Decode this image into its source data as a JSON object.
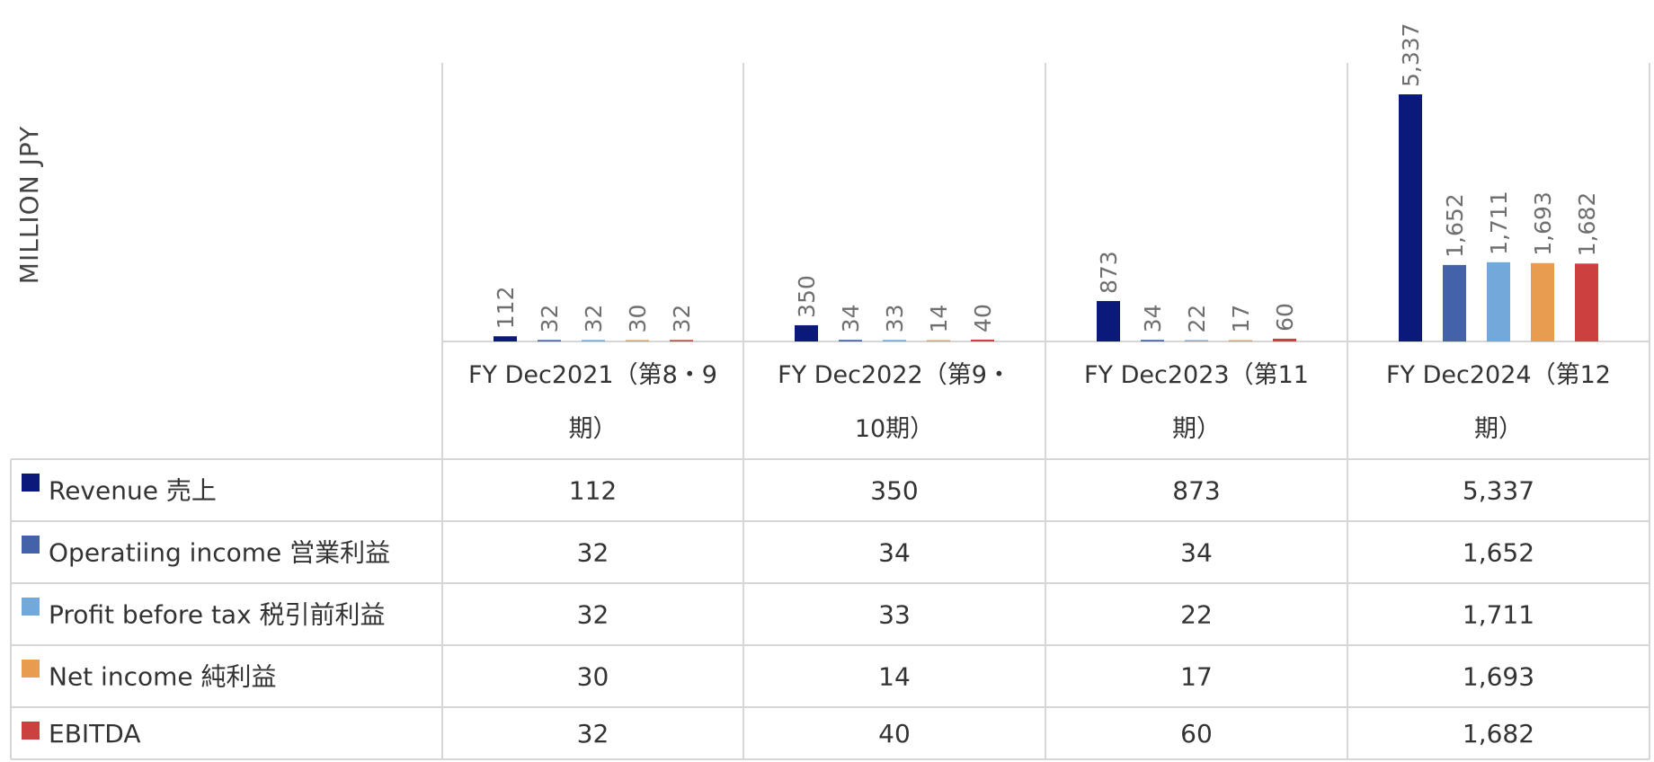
{
  "chart_data": {
    "type": "bar",
    "ylabel": "MILLION JPY",
    "categories": [
      [
        "FY Dec2021（第8・9",
        "期）"
      ],
      [
        "FY Dec2022（第9・",
        "10期）"
      ],
      [
        "FY Dec2023（第11",
        "期）"
      ],
      [
        "FY Dec2024（第12",
        "期）"
      ]
    ],
    "ylim": [
      0,
      5337
    ],
    "grid": false,
    "legend": "data-table",
    "series": [
      {
        "name": "Revenue 売上",
        "color": "#0b1a7a",
        "values": [
          112,
          350,
          873,
          5337
        ],
        "labels": [
          "112",
          "350",
          "873",
          "5,337"
        ]
      },
      {
        "name": "Operatiing income 営業利益",
        "color": "#4462a8",
        "values": [
          32,
          34,
          34,
          1652
        ],
        "labels": [
          "32",
          "34",
          "34",
          "1,652"
        ]
      },
      {
        "name": "Profit before tax 税引前利益",
        "color": "#72a9db",
        "values": [
          32,
          33,
          22,
          1711
        ],
        "labels": [
          "32",
          "33",
          "22",
          "1,711"
        ]
      },
      {
        "name": "Net income 純利益",
        "color": "#e89c4f",
        "values": [
          30,
          14,
          17,
          1693
        ],
        "labels": [
          "30",
          "14",
          "17",
          "1,693"
        ]
      },
      {
        "name": "EBITDA",
        "color": "#cc4040",
        "values": [
          32,
          40,
          60,
          1682
        ],
        "labels": [
          "32",
          "40",
          "60",
          "1,682"
        ]
      }
    ]
  }
}
